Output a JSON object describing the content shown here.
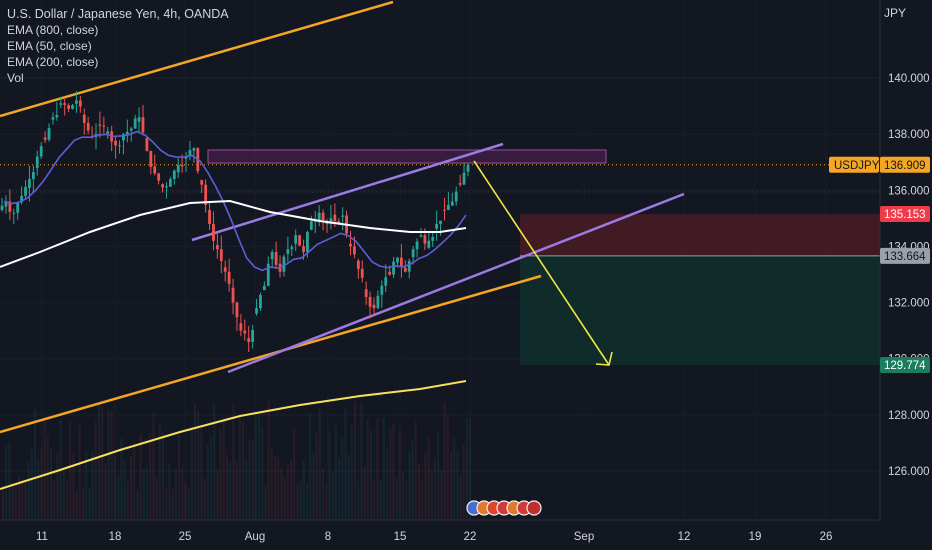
{
  "legend": {
    "title": "U.S. Dollar / Japanese Yen, 4h, OANDA",
    "indicators": [
      "EMA (800, close)",
      "EMA (50, close)",
      "EMA (200, close)",
      "Vol"
    ]
  },
  "currency": "JPY",
  "colors": {
    "background": "#131722",
    "up": "#26a69a",
    "down": "#ef5350",
    "ema800": "#f7e15b",
    "ema50": "#5c5fd6",
    "ema200": "#ffffff",
    "channel": "#9b7be0",
    "orange": "#f5a623",
    "projection": "#f0e442",
    "stop_zone": "#4a1c24",
    "target_zone": "#0f2d2b"
  },
  "chart_data": {
    "type": "candlestick",
    "symbol": "USDJPY",
    "ylim": [
      125,
      141.5
    ],
    "yticks": [
      126,
      128,
      130,
      132,
      134,
      136,
      138,
      140
    ],
    "yticks_labels": [
      "126.000",
      "128.000",
      "130.000",
      "132.000",
      "134.000",
      "136.000",
      "138.000",
      "140.000"
    ],
    "xticks_labels": [
      "11",
      "18",
      "25",
      "Aug",
      "8",
      "15",
      "22",
      "Sep",
      "12",
      "19",
      "26"
    ],
    "close_series": [
      135.6,
      135.2,
      135.8,
      136.4,
      137.2,
      137.8,
      138.6,
      139.1,
      138.9,
      139.2,
      138.4,
      137.9,
      138.3,
      138.1,
      137.6,
      138.0,
      138.2,
      138.6,
      137.4,
      136.6,
      136.1,
      136.4,
      136.9,
      137.2,
      137.5,
      136.2,
      134.8,
      133.9,
      133.1,
      132.0,
      131.0,
      130.6,
      131.8,
      132.6,
      133.8,
      133.1,
      133.9,
      134.4,
      133.8,
      134.9,
      135.2,
      134.8,
      134.9,
      135.1,
      134.0,
      133.2,
      132.2,
      131.8,
      132.6,
      133.0,
      133.6,
      133.1,
      133.9,
      134.4,
      134.2,
      134.8,
      135.3,
      135.6,
      136.2,
      136.9
    ],
    "prices": {
      "current": 136.909,
      "stop": 135.153,
      "entry": 133.664,
      "target": 129.774
    },
    "price_labels": {
      "current": "136.909",
      "stop": "135.153",
      "entry": "133.664",
      "target": "129.774",
      "symbol": "USDJPY"
    }
  }
}
